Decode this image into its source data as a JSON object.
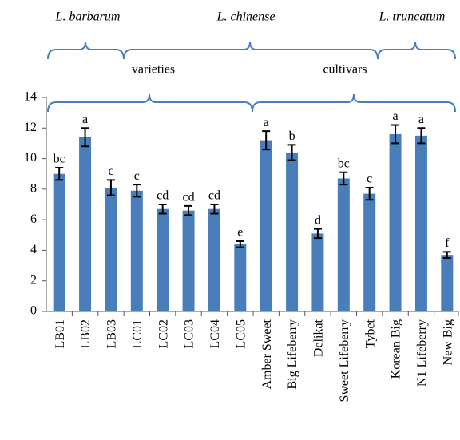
{
  "chart_data": {
    "type": "bar",
    "groups": [
      "L. barbarum",
      "L. chinense",
      "L. truncatum"
    ],
    "subgroups": [
      "varieties",
      "cultivars"
    ],
    "categories": [
      "LB01",
      "LB02",
      "LB03",
      "LC01",
      "LC02",
      "LC03",
      "LC04",
      "LC05",
      "Amber Sweet",
      "Big Lifeberry",
      "Delikat",
      "Sweet Lifeberry",
      "Tybet",
      "Korean Big",
      "N1 Lifeberry",
      "New Big"
    ],
    "values": [
      9.0,
      11.4,
      8.1,
      7.9,
      6.7,
      6.6,
      6.7,
      4.4,
      11.2,
      10.4,
      5.1,
      8.7,
      7.7,
      11.6,
      11.5,
      3.7
    ],
    "errors": [
      0.4,
      0.6,
      0.5,
      0.4,
      0.3,
      0.3,
      0.3,
      0.2,
      0.6,
      0.5,
      0.3,
      0.4,
      0.4,
      0.6,
      0.5,
      0.2
    ],
    "annotations": [
      "bc",
      "a",
      "c",
      "c",
      "cd",
      "cd",
      "cd",
      "e",
      "a",
      "b",
      "d",
      "bc",
      "c",
      "a",
      "a",
      "f"
    ],
    "color": "#4a7ebb",
    "ylim": [
      0,
      14
    ],
    "yticks": [
      0,
      2,
      4,
      6,
      8,
      10,
      12,
      14
    ],
    "grid": false
  }
}
